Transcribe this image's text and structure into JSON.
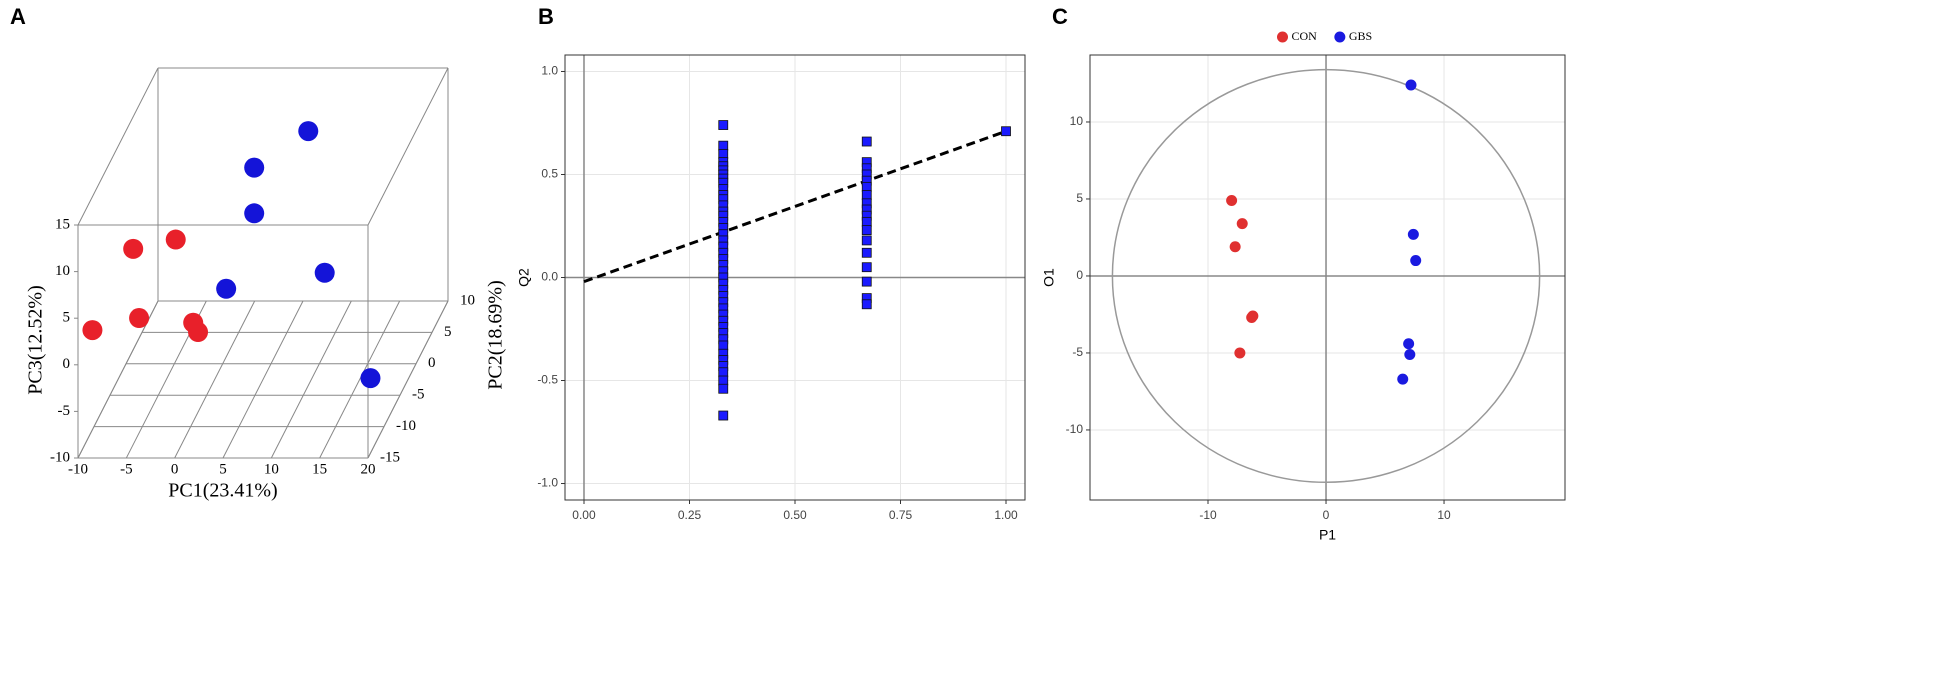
{
  "panel_labels": [
    "A",
    "B",
    "C"
  ],
  "chart_data": [
    {
      "type": "scatter3d",
      "xlabel": "PC1(23.41%)",
      "ylabel": "PC2(18.69%)",
      "zlabel": "PC3(12.52%)",
      "xlim": [
        -10,
        20
      ],
      "ylim": [
        -15,
        10
      ],
      "zlim": [
        -10,
        15
      ],
      "xticks": [
        -10,
        -5,
        0,
        5,
        10,
        15,
        20
      ],
      "yticks": [
        -15,
        -10,
        -5,
        0,
        5,
        10
      ],
      "zticks": [
        -10,
        -5,
        0,
        5,
        10,
        15
      ],
      "series": [
        {
          "color": "#e8202a",
          "x": [
            -7.6,
            -3.2,
            -9.5,
            -6.0,
            -0.4,
            0.1
          ],
          "y": [
            -5,
            -5,
            -12,
            -8,
            -8,
            -8
          ],
          "z": [
            5.7,
            6.7,
            1.7,
            0.3,
            -0.2,
            -1.2
          ]
        },
        {
          "color": "#1414d8",
          "x": [
            7.2,
            2.6,
            2.6,
            -0.3,
            8.9,
            18.6
          ],
          "y": [
            5,
            2,
            2,
            2,
            5,
            -10
          ],
          "z": [
            11.6,
            9.7,
            4.8,
            -3.3,
            -3.6,
            -4.8
          ]
        }
      ]
    },
    {
      "type": "scatter",
      "ylabel": "Q2",
      "color": "#1a1aff",
      "xlim": [
        -0.045,
        1.045
      ],
      "ylim": [
        -1.08,
        1.08
      ],
      "xticks": [
        {
          "value": 0,
          "label": "0.00"
        },
        {
          "value": 0.25,
          "label": "0.25"
        },
        {
          "value": 0.5,
          "label": "0.50"
        },
        {
          "value": 0.75,
          "label": "0.75"
        },
        {
          "value": 1,
          "label": "1.00"
        }
      ],
      "yticks": [
        {
          "value": -1,
          "label": "-1.0"
        },
        {
          "value": -0.5,
          "label": "-0.5"
        },
        {
          "value": 0,
          "label": "0.0"
        },
        {
          "value": 0.5,
          "label": "0.5"
        },
        {
          "value": 1,
          "label": "1.0"
        }
      ],
      "grid": true,
      "zero_lines": true,
      "marker": "square",
      "x": [
        0.33,
        0.33,
        0.33,
        0.33,
        0.33,
        0.33,
        0.33,
        0.33,
        0.33,
        0.33,
        0.33,
        0.33,
        0.33,
        0.33,
        0.33,
        0.33,
        0.33,
        0.33,
        0.33,
        0.33,
        0.33,
        0.33,
        0.33,
        0.33,
        0.33,
        0.33,
        0.33,
        0.33,
        0.33,
        0.33,
        0.33,
        0.33,
        0.33,
        0.33,
        0.33,
        0.33,
        0.33,
        0.33,
        0.33,
        0.33,
        0.33,
        0.33,
        0.33,
        0.67,
        0.67,
        0.67,
        0.67,
        0.67,
        0.67,
        0.67,
        0.67,
        0.67,
        0.67,
        0.67,
        0.67,
        0.67,
        0.67,
        0.67,
        0.67,
        0.67,
        0.67,
        1.0
      ],
      "values": [
        0.74,
        0.64,
        0.6,
        0.56,
        0.54,
        0.52,
        0.5,
        0.48,
        0.46,
        0.43,
        0.4,
        0.38,
        0.35,
        0.32,
        0.3,
        0.27,
        0.24,
        0.21,
        0.18,
        0.15,
        0.12,
        0.09,
        0.06,
        0.03,
        0.0,
        -0.03,
        -0.06,
        -0.09,
        -0.12,
        -0.15,
        -0.18,
        -0.21,
        -0.24,
        -0.27,
        -0.3,
        -0.33,
        -0.37,
        -0.4,
        -0.43,
        -0.46,
        -0.5,
        -0.54,
        -0.67,
        0.66,
        0.56,
        0.53,
        0.5,
        0.47,
        0.44,
        0.4,
        0.36,
        0.33,
        0.3,
        0.27,
        0.23,
        0.18,
        0.12,
        0.05,
        -0.02,
        -0.1,
        -0.13,
        0.71
      ],
      "trend_line": {
        "x": [
          0,
          1
        ],
        "values": [
          -0.02,
          0.71
        ],
        "dashed": true
      }
    },
    {
      "type": "scatter",
      "xlabel": "P1",
      "ylabel": "O1",
      "xlim": [
        -20,
        20.25
      ],
      "ylim": [
        -14.55,
        14.35
      ],
      "xticks": [
        -10,
        0,
        10
      ],
      "yticks": [
        -10,
        -5,
        0,
        5,
        10
      ],
      "grid": true,
      "zero_lines": true,
      "marker": "circle",
      "legend": "top",
      "ellipse": {
        "rx": 18.1,
        "ry": 13.4
      },
      "series": [
        {
          "name": "CON",
          "color": "#e03030",
          "x": [
            -8.0,
            -7.1,
            -7.7,
            -6.2,
            -6.3,
            -7.3
          ],
          "values": [
            4.9,
            3.4,
            1.9,
            -2.6,
            -2.7,
            -5.0
          ]
        },
        {
          "name": "GBS",
          "color": "#1a1ae0",
          "x": [
            7.2,
            7.4,
            7.6,
            7.0,
            7.1,
            6.5
          ],
          "values": [
            12.4,
            2.7,
            1.0,
            -4.4,
            -5.1,
            -6.7
          ]
        }
      ]
    }
  ]
}
